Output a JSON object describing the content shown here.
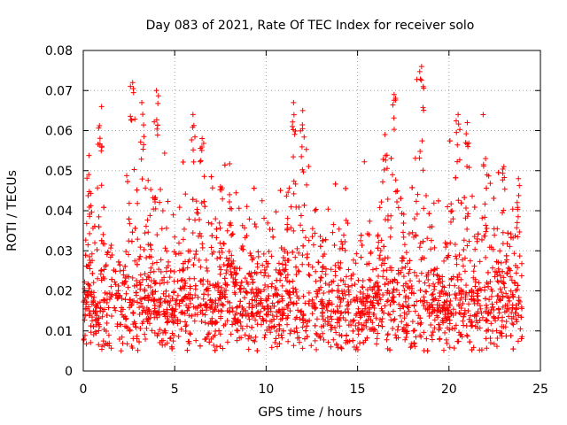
{
  "chart_data": {
    "type": "scatter",
    "title": "Day 083 of 2021, Rate Of TEC Index for receiver solo",
    "xlabel": "GPS time / hours",
    "ylabel": "ROTI / TECUs",
    "xlim": [
      0,
      25
    ],
    "ylim": [
      0,
      0.08
    ],
    "x_ticks": [
      "0",
      "5",
      "10",
      "15",
      "20",
      "25"
    ],
    "y_ticks": [
      "0",
      "0.01",
      "0.02",
      "0.03",
      "0.04",
      "0.05",
      "0.06",
      "0.07",
      "0.08"
    ],
    "grid": true,
    "marker": "+",
    "series": [
      {
        "name": "ROTI",
        "color": "#ff0000",
        "x_range": [
          0,
          24
        ],
        "typical_band": [
          0.005,
          0.035
        ],
        "baseline_median": 0.015,
        "activity_peaks": [
          {
            "x": 0.3,
            "y": 0.049
          },
          {
            "x": 1.0,
            "y": 0.066
          },
          {
            "x": 2.7,
            "y": 0.072
          },
          {
            "x": 3.2,
            "y": 0.067
          },
          {
            "x": 4.0,
            "y": 0.07
          },
          {
            "x": 6.0,
            "y": 0.064
          },
          {
            "x": 6.5,
            "y": 0.058
          },
          {
            "x": 7.5,
            "y": 0.046
          },
          {
            "x": 8.0,
            "y": 0.044
          },
          {
            "x": 11.5,
            "y": 0.067
          },
          {
            "x": 12.0,
            "y": 0.065
          },
          {
            "x": 16.5,
            "y": 0.059
          },
          {
            "x": 17.0,
            "y": 0.069
          },
          {
            "x": 18.5,
            "y": 0.076
          },
          {
            "x": 20.5,
            "y": 0.064
          },
          {
            "x": 21.0,
            "y": 0.062
          },
          {
            "x": 22.0,
            "y": 0.053
          },
          {
            "x": 23.0,
            "y": 0.051
          },
          {
            "x": 23.8,
            "y": 0.048
          }
        ]
      }
    ]
  }
}
